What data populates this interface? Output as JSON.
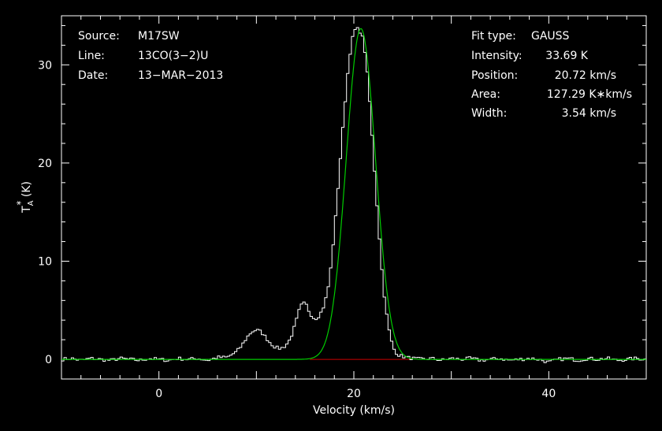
{
  "chart_data": {
    "type": "line",
    "xlabel": "Velocity (km/s)",
    "ylabel": "T*A (K)",
    "ylabel_main": "T",
    "ylabel_sup": "*",
    "ylabel_sub": "A",
    "ylabel_unit": " (K)",
    "xlim": [
      -10,
      50
    ],
    "ylim": [
      -2,
      35
    ],
    "xticks": [
      0,
      20,
      40
    ],
    "yticks": [
      0,
      10,
      20,
      30
    ],
    "grid": false,
    "colors": {
      "background": "#000000",
      "frame": "#ffffff",
      "spectrum": "#ffffff",
      "fit": "#00cc00",
      "baseline": "#cc0000"
    },
    "info_left": [
      {
        "key": "Source:",
        "value": "M17SW"
      },
      {
        "key": "Line:",
        "value": "13CO(3−2)U"
      },
      {
        "key": "Date:",
        "value": "13−MAR−2013"
      }
    ],
    "info_right": [
      {
        "key": "Fit type:",
        "value": "GAUSS"
      },
      {
        "key": "Intensity:",
        "value": "33.69 K"
      },
      {
        "key": "Position:",
        "value": "20.72 km/s"
      },
      {
        "key": "Area:",
        "value": "127.29 K∗km/s"
      },
      {
        "key": "Width:",
        "value": "3.54 km/s"
      }
    ],
    "fit": {
      "amplitude": 33.69,
      "center": 20.72,
      "fwhm": 3.54
    },
    "series": [
      {
        "role": "spectrum",
        "x": [
          -10,
          -9,
          -8,
          -7,
          -6,
          -5,
          -4,
          -3,
          -2,
          -1,
          0,
          1,
          2,
          3,
          4,
          5,
          6,
          7,
          7.5,
          8,
          8.5,
          9,
          9.5,
          10,
          10.5,
          11,
          11.5,
          12,
          12.5,
          13,
          13.5,
          14,
          14.5,
          15,
          15.5,
          16,
          16.5,
          17,
          17.5,
          18,
          18.5,
          19,
          19.5,
          20,
          20.5,
          21,
          21.5,
          22,
          22.5,
          23,
          23.5,
          24,
          24.5,
          25,
          25.5,
          26,
          27,
          28,
          29,
          30,
          31,
          32,
          33,
          34,
          35,
          36,
          37,
          38,
          39,
          40,
          41,
          42,
          43,
          44,
          45,
          46,
          47,
          48,
          49,
          50
        ],
        "y": [
          0.0,
          0.1,
          -0.1,
          0.1,
          0.0,
          -0.1,
          0.1,
          0.0,
          -0.1,
          0.1,
          0.0,
          -0.1,
          0.1,
          0.0,
          0.1,
          -0.1,
          0.2,
          0.2,
          0.5,
          0.8,
          1.4,
          2.2,
          2.8,
          3.0,
          2.8,
          2.2,
          1.6,
          1.2,
          1.1,
          1.4,
          2.1,
          3.6,
          5.4,
          5.8,
          4.7,
          4.1,
          4.5,
          5.6,
          8.0,
          13.0,
          19.0,
          25.0,
          30.5,
          33.5,
          33.7,
          32.5,
          28.0,
          21.0,
          14.0,
          7.5,
          3.5,
          1.2,
          0.5,
          0.3,
          0.2,
          0.1,
          0.0,
          0.1,
          -0.1,
          0.1,
          0.0,
          0.1,
          -0.1,
          0.0,
          0.1,
          -0.1,
          0.0,
          0.1,
          0.0,
          -0.3,
          0.0,
          0.1,
          -0.1,
          0.1,
          0.0,
          0.1,
          -0.1,
          0.0,
          0.1,
          0.0
        ]
      }
    ],
    "baseline_range": [
      15.5,
      26
    ]
  }
}
